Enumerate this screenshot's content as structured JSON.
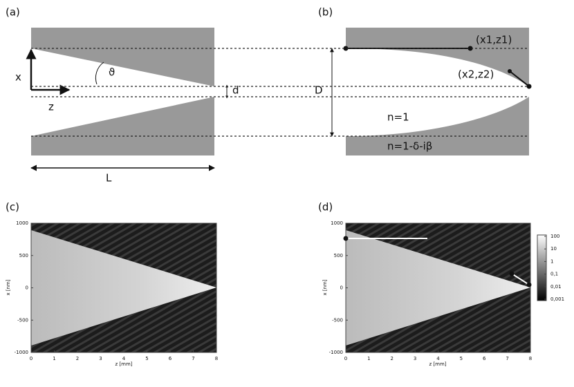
{
  "panel_a": {
    "label": "(a)",
    "x_axis": "x",
    "z_axis": "z",
    "angle": "ϑ",
    "gap": "d",
    "diameter": "D",
    "length": "L"
  },
  "panel_b": {
    "label": "(b)",
    "point1": "(x1,z1)",
    "point2": "(x2,z2)",
    "inside": "n=1",
    "outside": "n=1-δ-iβ"
  },
  "panel_c": {
    "label": "(c)",
    "x_label": "z [mm]",
    "y_label": "x [nm]",
    "xlim": [
      0,
      8
    ],
    "ylim": [
      -1000,
      1000
    ],
    "xticks": [
      0,
      1,
      2,
      3,
      4,
      5,
      6,
      7,
      8
    ],
    "yticks": [
      -1000,
      -500,
      0,
      500,
      1000
    ]
  },
  "panel_d": {
    "label": "(d)",
    "x_label": "z [mm]",
    "y_label": "x [nm]",
    "xlim": [
      0,
      8
    ],
    "ylim": [
      -1000,
      1000
    ],
    "xticks": [
      0,
      1,
      2,
      3,
      4,
      5,
      6,
      7,
      8
    ],
    "yticks": [
      -1000,
      -500,
      0,
      500,
      1000
    ],
    "colorbar": {
      "log": true,
      "lim": [
        0.001,
        100
      ],
      "ticks": [
        100,
        10,
        1,
        {
          "value": 0.1,
          "label": "0,1"
        },
        {
          "value": 0.01,
          "label": "0,01"
        },
        {
          "value": 0.001,
          "label": "0,001"
        }
      ]
    }
  }
}
